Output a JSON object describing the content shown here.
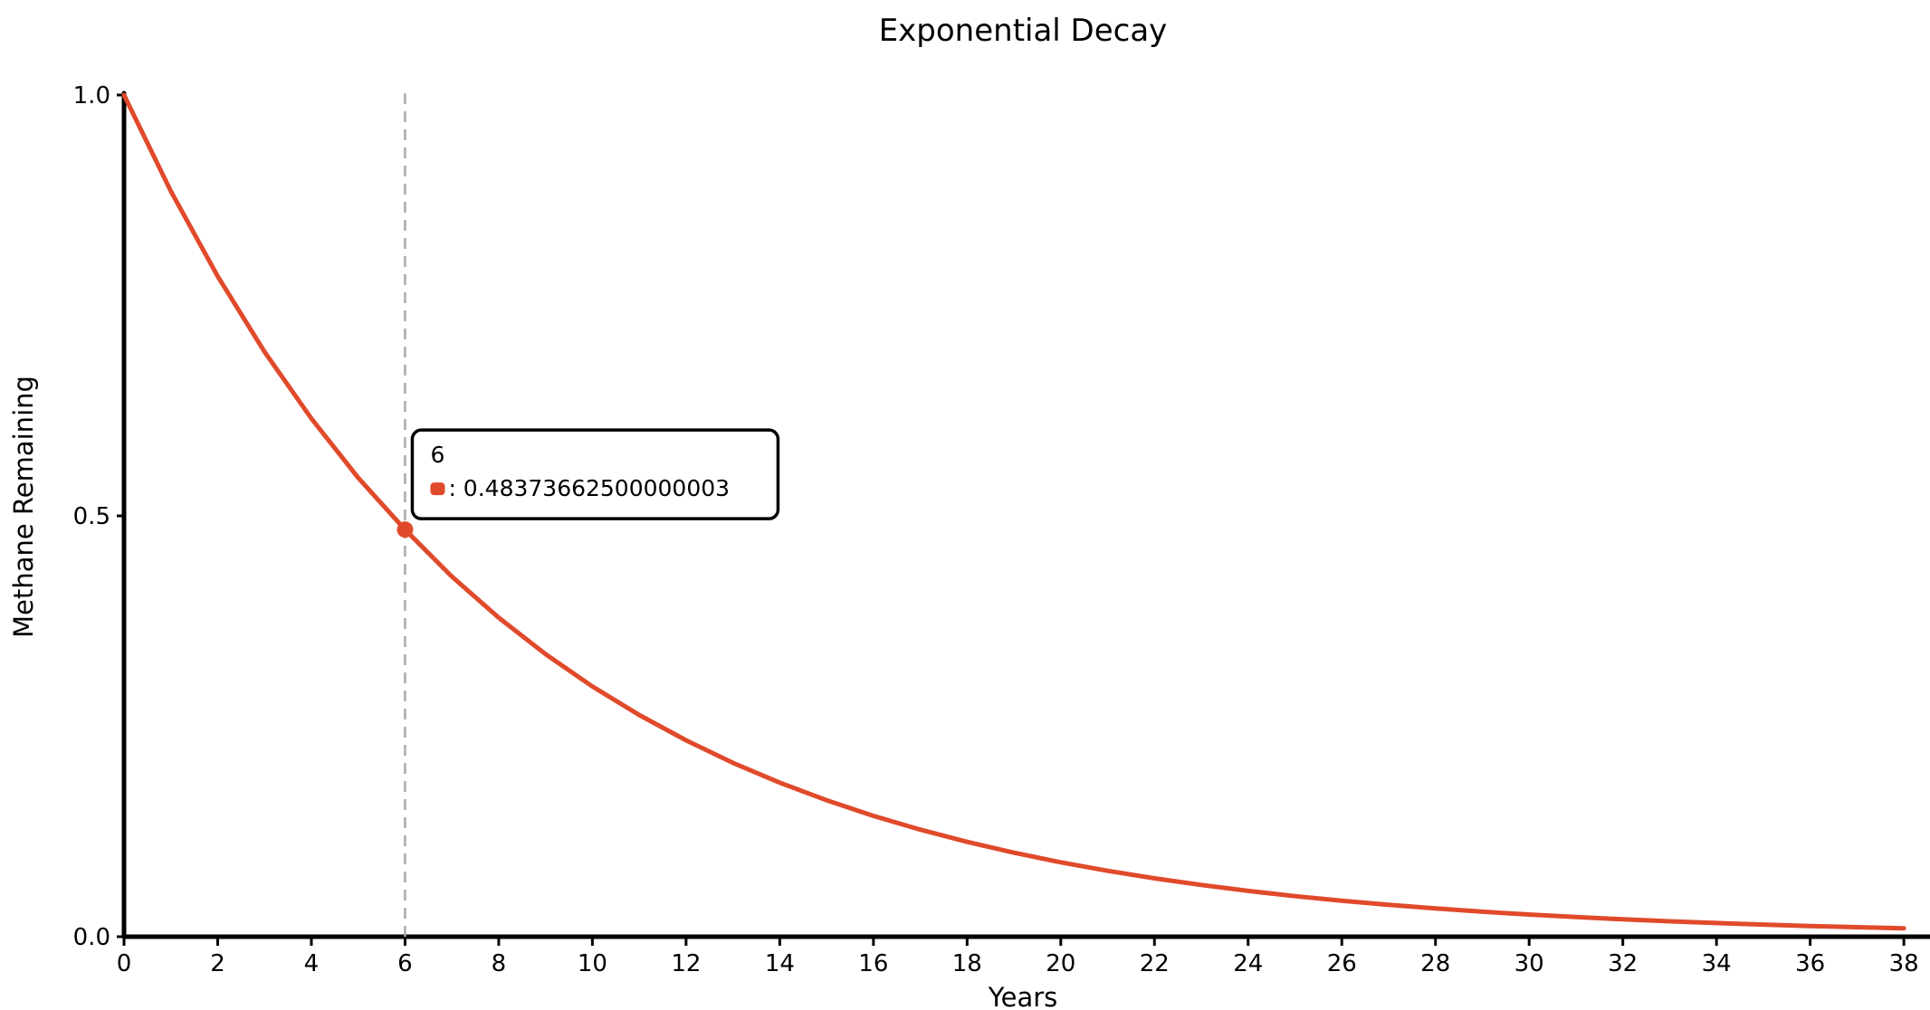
{
  "chart_data": {
    "type": "line",
    "title": "Exponential Decay",
    "xlabel": "Years",
    "ylabel": "Methane Remaining",
    "xlim": [
      0,
      38
    ],
    "ylim": [
      0,
      1.0
    ],
    "x_ticks": [
      "0",
      "2",
      "4",
      "6",
      "8",
      "10",
      "12",
      "14",
      "16",
      "18",
      "20",
      "22",
      "24",
      "26",
      "28",
      "30",
      "32",
      "34",
      "36",
      "38"
    ],
    "y_ticks": [
      "0.0",
      "0.5",
      "1.0"
    ],
    "grid": false,
    "line_color": "#e04a2b",
    "series": [
      {
        "x": [
          0,
          1,
          2,
          3,
          4,
          5,
          6,
          7,
          8,
          9,
          10,
          11,
          12,
          13,
          14,
          15,
          16,
          17,
          18,
          19,
          20,
          21,
          22,
          23,
          24,
          25,
          26,
          27,
          28,
          29,
          30,
          31,
          32,
          33,
          34,
          35,
          36,
          37,
          38
        ],
        "values": [
          1.0,
          0.8858,
          0.7846,
          0.695,
          0.6156,
          0.5453,
          0.4837,
          0.4278,
          0.379,
          0.3357,
          0.2973,
          0.2634,
          0.2333,
          0.2066,
          0.183,
          0.1621,
          0.1436,
          0.1272,
          0.1127,
          0.0998,
          0.0884,
          0.0783,
          0.0694,
          0.0615,
          0.0544,
          0.0482,
          0.0427,
          0.0378,
          0.0335,
          0.0297,
          0.0263,
          0.0233,
          0.0206,
          0.0183,
          0.0162,
          0.0144,
          0.0127,
          0.0113,
          0.01
        ]
      }
    ],
    "tooltip": {
      "x_label": "6",
      "value_text": ": 0.48373662500000003",
      "x": 6,
      "y": 0.4837
    }
  }
}
